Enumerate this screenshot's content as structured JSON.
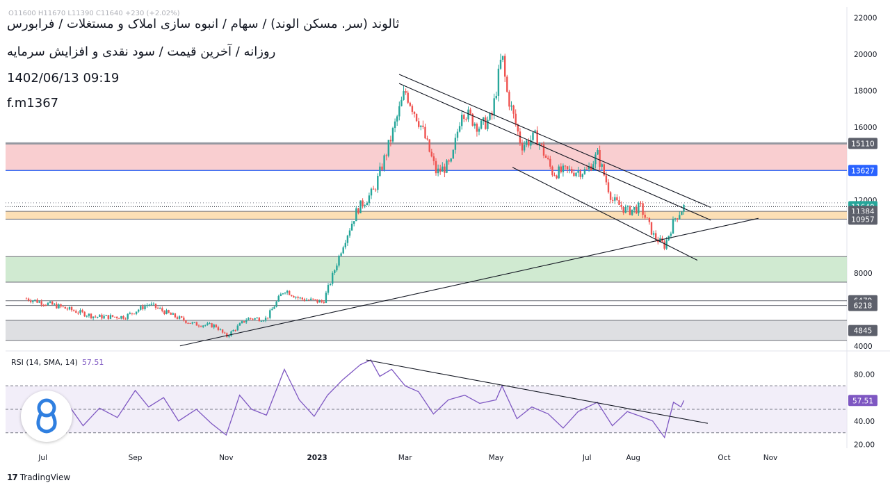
{
  "header": {
    "title_line": "ثالوند (سر. مسکن الوند) / سهام / انبوه سازی املاک و مستغلات / فرابورس",
    "subtitle_line": "روزانه / آخرین قیمت / سود نقدی و افزایش سرمایه",
    "datetime": "1402/06/13 09:19",
    "author": "f.m1367",
    "ohlc_text": "O11600 H11670 L11390 C11640 +230 (+2.02%)"
  },
  "rsi": {
    "title": "RSI (14, SMA, 14)",
    "value": "57.51"
  },
  "footer": {
    "brand": "TradingView",
    "logo": "tv-logo-icon"
  },
  "colors": {
    "up": "#26a69a",
    "down": "#ef5350",
    "resistance_zone": "#f8c5c8",
    "orange_zone": "#fcd9a8",
    "green_zone": "#c8e6c9",
    "grey_zone": "#d8d9dd",
    "rsi_line": "#7e57c2",
    "rsi_band": "#ede7f6",
    "blue_line": "#2962ff"
  },
  "chart_data": {
    "type": "candlestick",
    "title": "",
    "y_ticks": [
      4000,
      6000,
      8000,
      10000,
      12000,
      14000,
      16000,
      18000,
      20000,
      22000
    ],
    "y_tick_labels": [
      "4000",
      "",
      "8000",
      "",
      "12000",
      "",
      "16000",
      "18000",
      "20000",
      "22000"
    ],
    "ylim": [
      3800,
      22600
    ],
    "x_tick_labels": [
      "Jul",
      "Sep",
      "Nov",
      "2023",
      "Mar",
      "May",
      "Jul",
      "Aug",
      "Oct",
      "Nov"
    ],
    "price_labels": [
      {
        "text": "15110",
        "value": 15110,
        "kind": "grey"
      },
      {
        "text": "13627",
        "value": 13627,
        "kind": "blue"
      },
      {
        "text": "11640",
        "value": 11640,
        "kind": "last"
      },
      {
        "text": "11384",
        "value": 11384,
        "kind": "grey"
      },
      {
        "text": "10957",
        "value": 10957,
        "kind": "grey"
      },
      {
        "text": "6479",
        "value": 6479,
        "kind": "grey"
      },
      {
        "text": "6218",
        "value": 6218,
        "kind": "grey"
      },
      {
        "text": "4845",
        "value": 4845,
        "kind": "grey"
      }
    ],
    "zones": [
      {
        "name": "resistance",
        "from": 13627,
        "to": 15110
      },
      {
        "name": "orange",
        "from": 10957,
        "to": 11384
      },
      {
        "name": "green",
        "from": 7500,
        "to": 8900
      },
      {
        "name": "grey",
        "from": 4300,
        "to": 5400
      }
    ],
    "close_series": [
      {
        "date": "2022-06-20",
        "close": 6600
      },
      {
        "date": "2022-07-10",
        "close": 6200
      },
      {
        "date": "2022-08-05",
        "close": 5600
      },
      {
        "date": "2022-08-25",
        "close": 5600
      },
      {
        "date": "2022-09-10",
        "close": 6300
      },
      {
        "date": "2022-09-25",
        "close": 5700
      },
      {
        "date": "2022-10-10",
        "close": 5200
      },
      {
        "date": "2022-10-25",
        "close": 5100
      },
      {
        "date": "2022-11-01",
        "close": 4500
      },
      {
        "date": "2022-11-15",
        "close": 5500
      },
      {
        "date": "2022-11-28",
        "close": 5500
      },
      {
        "date": "2022-12-10",
        "close": 7100
      },
      {
        "date": "2022-12-20",
        "close": 6600
      },
      {
        "date": "2023-01-05",
        "close": 6400
      },
      {
        "date": "2023-01-12",
        "close": 8000
      },
      {
        "date": "2023-01-18",
        "close": 9500
      },
      {
        "date": "2023-01-28",
        "close": 11500
      },
      {
        "date": "2023-02-08",
        "close": 12500
      },
      {
        "date": "2023-02-18",
        "close": 15000
      },
      {
        "date": "2023-03-01",
        "close": 18000
      },
      {
        "date": "2023-03-12",
        "close": 16000
      },
      {
        "date": "2023-03-22",
        "close": 13500
      },
      {
        "date": "2023-04-01",
        "close": 14000
      },
      {
        "date": "2023-04-08",
        "close": 17000
      },
      {
        "date": "2023-04-20",
        "close": 16000
      },
      {
        "date": "2023-04-28",
        "close": 16500
      },
      {
        "date": "2023-05-05",
        "close": 20000
      },
      {
        "date": "2023-05-08",
        "close": 18000
      },
      {
        "date": "2023-05-18",
        "close": 15000
      },
      {
        "date": "2023-05-28",
        "close": 15500
      },
      {
        "date": "2023-06-08",
        "close": 13500
      },
      {
        "date": "2023-06-20",
        "close": 13600
      },
      {
        "date": "2023-07-01",
        "close": 13600
      },
      {
        "date": "2023-07-08",
        "close": 14500
      },
      {
        "date": "2023-07-18",
        "close": 12000
      },
      {
        "date": "2023-07-28",
        "close": 11400
      },
      {
        "date": "2023-08-06",
        "close": 11600
      },
      {
        "date": "2023-08-15",
        "close": 10000
      },
      {
        "date": "2023-08-22",
        "close": 9500
      },
      {
        "date": "2023-08-29",
        "close": 11000
      },
      {
        "date": "2023-09-04",
        "close": 11640
      }
    ],
    "trendlines": [
      {
        "name": "channel-upper",
        "from": {
          "date": "2023-02-25",
          "value": 18900
        },
        "to": {
          "date": "2023-09-22",
          "value": 11600
        }
      },
      {
        "name": "channel-mid",
        "from": {
          "date": "2023-02-25",
          "value": 18400
        },
        "to": {
          "date": "2023-09-22",
          "value": 10900
        }
      },
      {
        "name": "channel-lower",
        "from": {
          "date": "2023-05-12",
          "value": 13800
        },
        "to": {
          "date": "2023-09-13",
          "value": 8700
        }
      },
      {
        "name": "long-support",
        "from": {
          "date": "2022-10-01",
          "value": 4000
        },
        "to": {
          "date": "2023-10-24",
          "value": 11000
        }
      }
    ],
    "rsi": {
      "name": "RSI (14, SMA, 14)",
      "ylim": [
        18,
        92
      ],
      "y_ticks": [
        "80.00",
        "40.00",
        "20.00"
      ],
      "bands": [
        70,
        50,
        30
      ],
      "trendline": {
        "from": {
          "date": "2023-02-03",
          "value": 92
        },
        "to": {
          "date": "2023-09-20",
          "value": 38
        }
      },
      "values": [
        {
          "date": "2022-06-20",
          "value": 46
        },
        {
          "date": "2022-06-28",
          "value": 58
        },
        {
          "date": "2022-07-08",
          "value": 42
        },
        {
          "date": "2022-07-18",
          "value": 54
        },
        {
          "date": "2022-07-28",
          "value": 36
        },
        {
          "date": "2022-08-08",
          "value": 51
        },
        {
          "date": "2022-08-20",
          "value": 43
        },
        {
          "date": "2022-09-01",
          "value": 66
        },
        {
          "date": "2022-09-10",
          "value": 52
        },
        {
          "date": "2022-09-20",
          "value": 60
        },
        {
          "date": "2022-09-30",
          "value": 40
        },
        {
          "date": "2022-10-12",
          "value": 50
        },
        {
          "date": "2022-10-22",
          "value": 38
        },
        {
          "date": "2022-11-01",
          "value": 28
        },
        {
          "date": "2022-11-10",
          "value": 62
        },
        {
          "date": "2022-11-18",
          "value": 50
        },
        {
          "date": "2022-11-28",
          "value": 45
        },
        {
          "date": "2022-12-10",
          "value": 84
        },
        {
          "date": "2022-12-20",
          "value": 58
        },
        {
          "date": "2022-12-30",
          "value": 44
        },
        {
          "date": "2023-01-08",
          "value": 62
        },
        {
          "date": "2023-01-18",
          "value": 75
        },
        {
          "date": "2023-01-30",
          "value": 88
        },
        {
          "date": "2023-02-06",
          "value": 92
        },
        {
          "date": "2023-02-12",
          "value": 78
        },
        {
          "date": "2023-02-20",
          "value": 84
        },
        {
          "date": "2023-03-01",
          "value": 70
        },
        {
          "date": "2023-03-10",
          "value": 65
        },
        {
          "date": "2023-03-20",
          "value": 46
        },
        {
          "date": "2023-03-30",
          "value": 58
        },
        {
          "date": "2023-04-10",
          "value": 62
        },
        {
          "date": "2023-04-20",
          "value": 55
        },
        {
          "date": "2023-05-01",
          "value": 58
        },
        {
          "date": "2023-05-05",
          "value": 70
        },
        {
          "date": "2023-05-15",
          "value": 42
        },
        {
          "date": "2023-05-25",
          "value": 52
        },
        {
          "date": "2023-06-05",
          "value": 46
        },
        {
          "date": "2023-06-15",
          "value": 34
        },
        {
          "date": "2023-06-25",
          "value": 48
        },
        {
          "date": "2023-07-08",
          "value": 56
        },
        {
          "date": "2023-07-18",
          "value": 36
        },
        {
          "date": "2023-07-28",
          "value": 48
        },
        {
          "date": "2023-08-06",
          "value": 44
        },
        {
          "date": "2023-08-14",
          "value": 40
        },
        {
          "date": "2023-08-22",
          "value": 26
        },
        {
          "date": "2023-08-28",
          "value": 56
        },
        {
          "date": "2023-09-02",
          "value": 52
        },
        {
          "date": "2023-09-04",
          "value": 57.51
        }
      ]
    }
  }
}
